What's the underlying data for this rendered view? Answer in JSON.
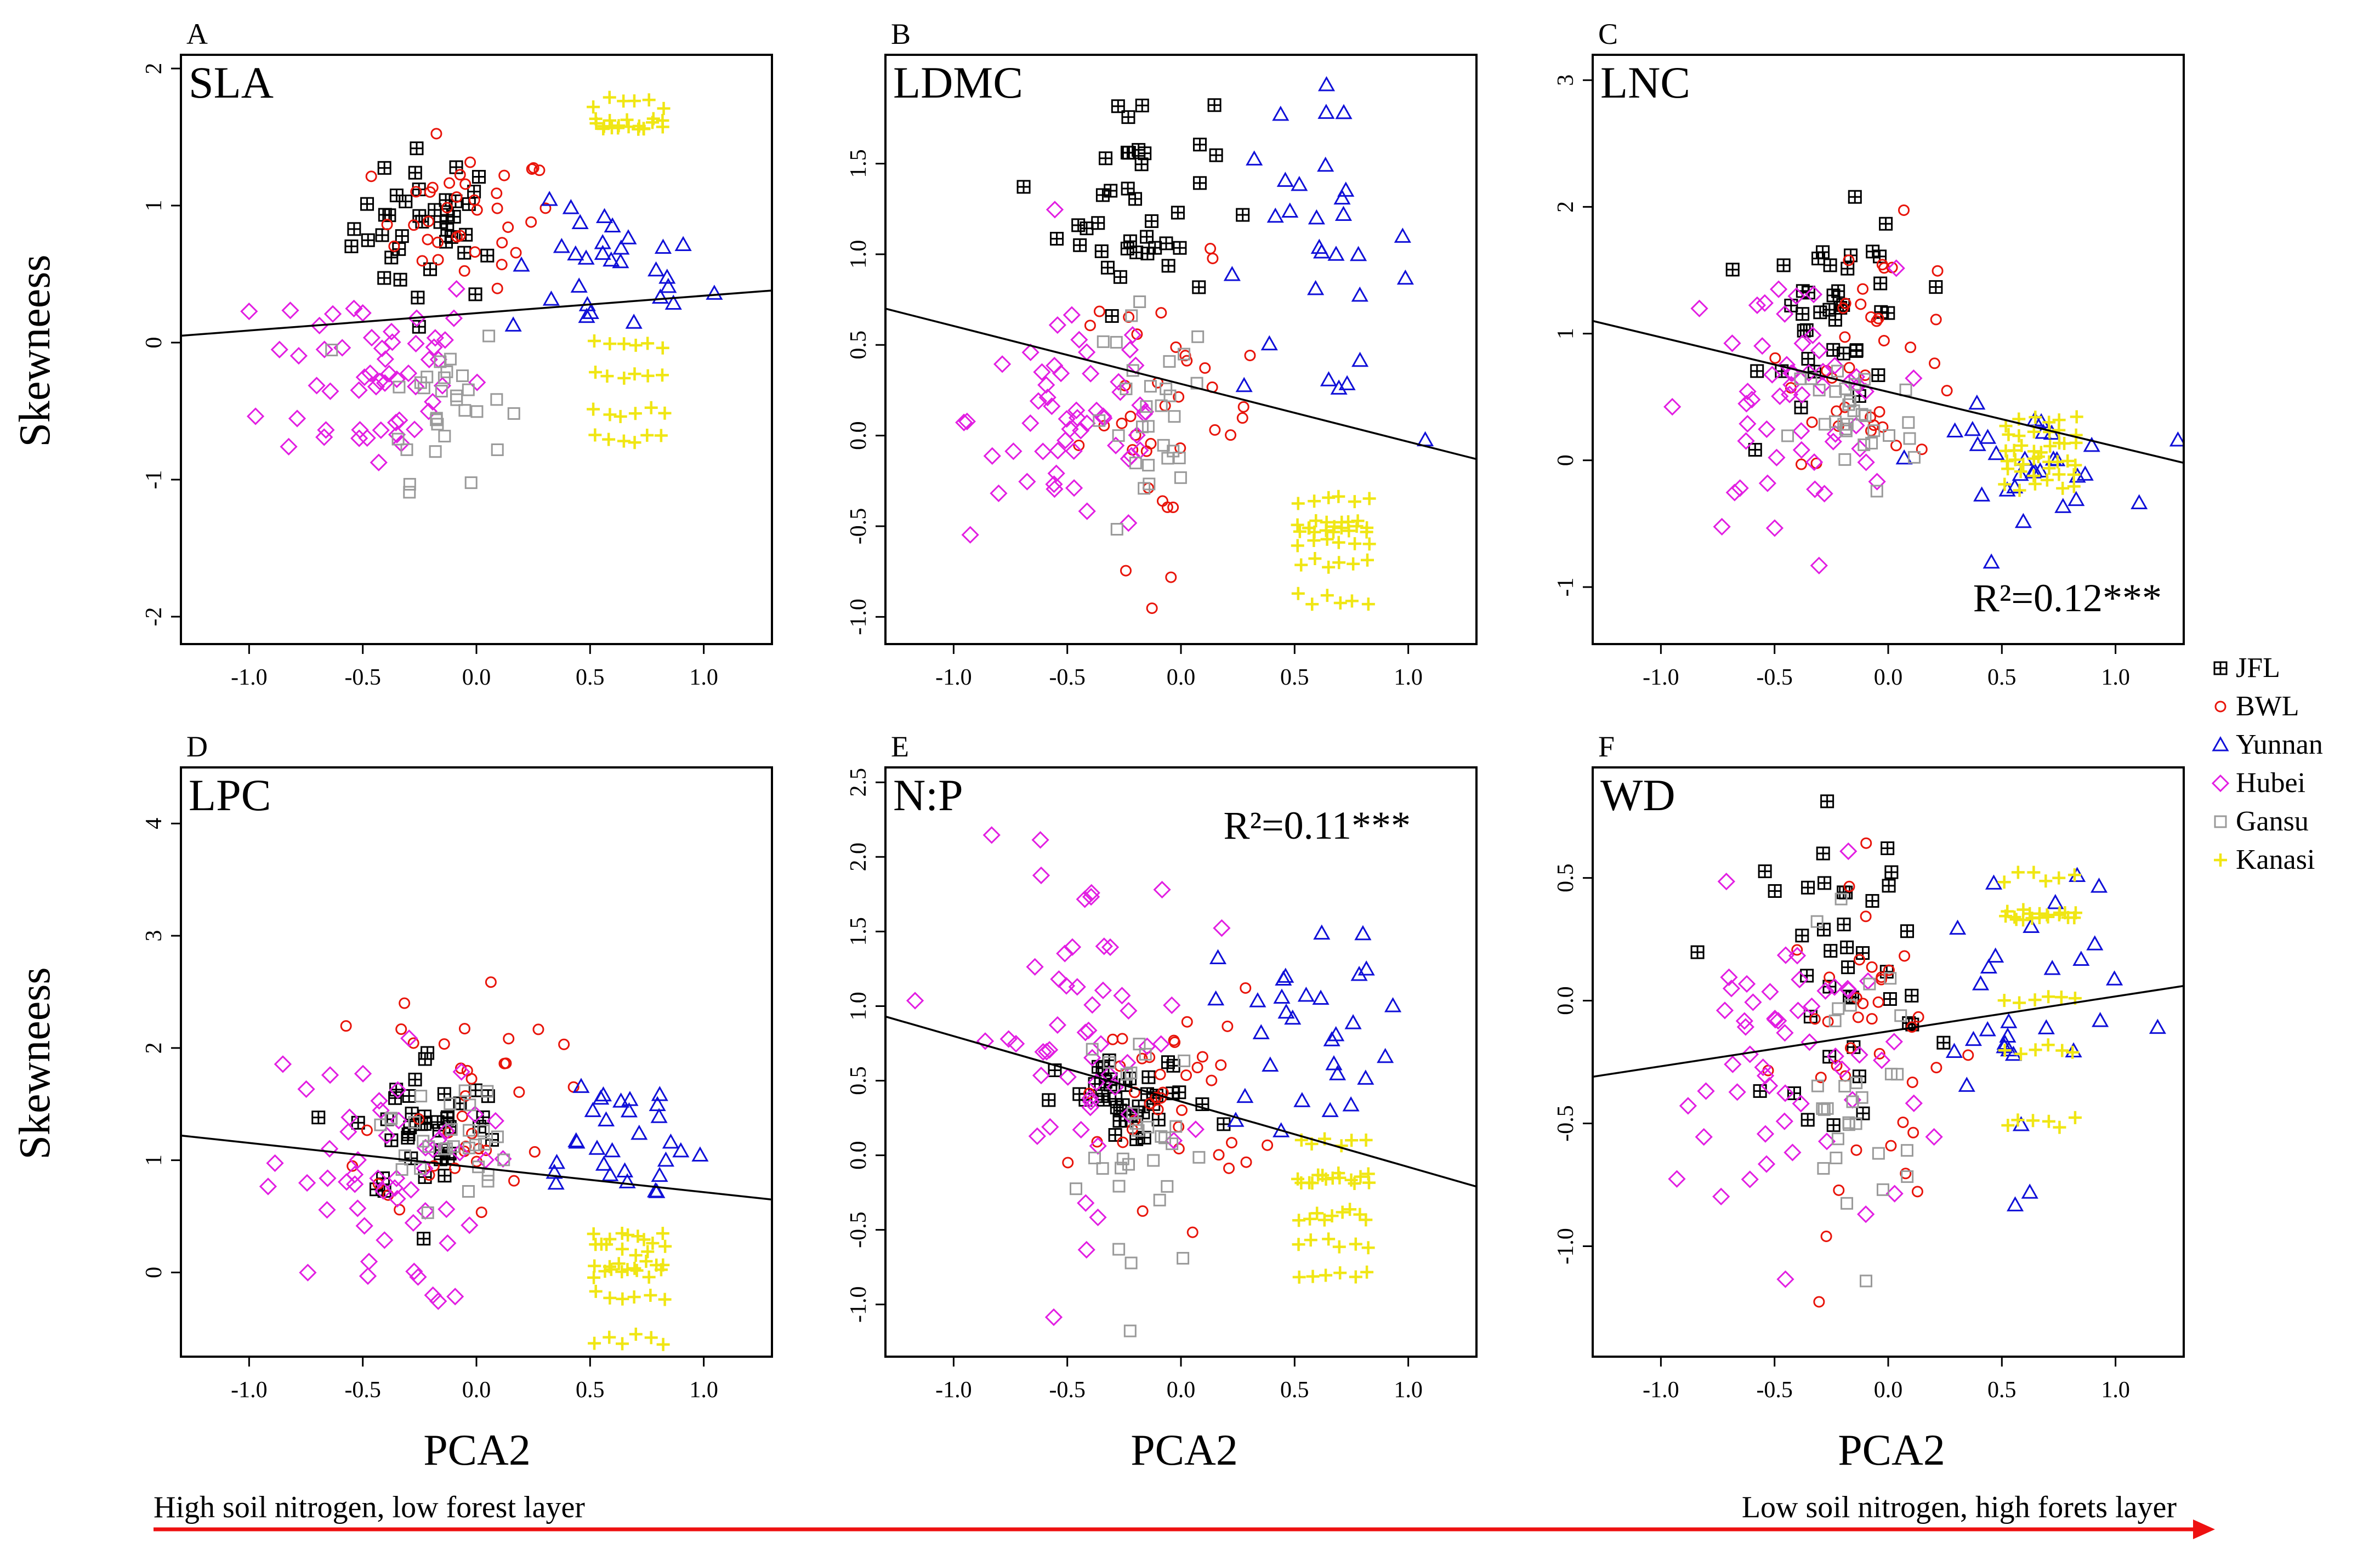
{
  "chart_data": {
    "type": "scatter",
    "figure_ylabel": "Skewneess",
    "figure_xlabel": "PCA2",
    "xlim": [
      -1.3,
      1.3
    ],
    "xticks": [
      -1.0,
      -0.5,
      0.0,
      0.5,
      1.0
    ],
    "xtick_labels": [
      "-1.0",
      "-0.5",
      "0.0",
      "0.5",
      "1.0"
    ],
    "gradient_arrow": {
      "left_label": "High soil nitrogen, low forest layer",
      "right_label": "Low soil nitrogen, high forets layer",
      "color": "#ee1111"
    },
    "legend": [
      {
        "name": "JFL",
        "marker": "boxed-plus",
        "color": "#000000"
      },
      {
        "name": "BWL",
        "marker": "circle",
        "color": "#e8140a"
      },
      {
        "name": "Yunnan",
        "marker": "triangle",
        "color": "#1010d8"
      },
      {
        "name": "Hubei",
        "marker": "diamond",
        "color": "#e21ee2"
      },
      {
        "name": "Gansu",
        "marker": "square",
        "color": "#9a9a9a"
      },
      {
        "name": "Kanasi",
        "marker": "plus",
        "color": "#f0e614"
      }
    ],
    "groups": [
      {
        "name": "JFL",
        "x_center": -0.2,
        "x_sd": 0.17
      },
      {
        "name": "BWL",
        "x_center": -0.05,
        "x_sd": 0.2
      },
      {
        "name": "Yunnan",
        "x_center": 0.58,
        "x_sd": 0.22
      },
      {
        "name": "Hubei",
        "x_center": -0.45,
        "x_sd": 0.24
      },
      {
        "name": "Gansu",
        "x_center": -0.15,
        "x_sd": 0.14
      },
      {
        "name": "Kanasi",
        "x_center": 0.67,
        "x_sd": 0.09
      }
    ],
    "panels": [
      {
        "letter": "A",
        "title": "SLA",
        "r2_label": "",
        "ylim": [
          -2.2,
          2.1
        ],
        "yticks": [
          -2,
          -1,
          0,
          1,
          2
        ],
        "ytick_labels": [
          "-2",
          "-1",
          "0",
          "1",
          "2"
        ],
        "regression": {
          "x1": -1.3,
          "y1": 0.05,
          "x2": 1.3,
          "y2": 0.38
        },
        "group_y": [
          {
            "name": "JFL",
            "mean": 0.85,
            "sd": 0.28
          },
          {
            "name": "BWL",
            "mean": 0.9,
            "sd": 0.25
          },
          {
            "name": "Yunnan",
            "mean": 0.5,
            "sd": 0.25
          },
          {
            "name": "Hubei",
            "mean": -0.2,
            "sd": 0.4
          },
          {
            "name": "Gansu",
            "mean": -0.4,
            "sd": 0.3
          },
          {
            "name": "Kanasi",
            "levels": [
              1.6,
              1.6,
              0.0,
              -0.25,
              -0.5,
              1.75,
              -0.7
            ]
          }
        ]
      },
      {
        "letter": "B",
        "title": "LDMC",
        "r2_label": "",
        "ylim": [
          -1.15,
          2.1
        ],
        "yticks": [
          -1.0,
          -0.5,
          0.0,
          0.5,
          1.0,
          1.5
        ],
        "ytick_labels": [
          "-1.0",
          "-0.5",
          "0.0",
          "0.5",
          "1.0",
          "1.5"
        ],
        "regression": {
          "x1": -1.3,
          "y1": 0.7,
          "x2": 1.3,
          "y2": -0.13
        },
        "group_y": [
          {
            "name": "JFL",
            "mean": 1.3,
            "sd": 0.3
          },
          {
            "name": "BWL",
            "mean": 0.1,
            "sd": 0.4
          },
          {
            "name": "Yunnan",
            "mean": 1.0,
            "sd": 0.4
          },
          {
            "name": "Hubei",
            "mean": 0.1,
            "sd": 0.35
          },
          {
            "name": "Gansu",
            "mean": 0.0,
            "sd": 0.35
          },
          {
            "name": "Kanasi",
            "levels": [
              -0.5,
              -0.5,
              -0.6,
              -0.7,
              -0.35,
              -0.9
            ]
          }
        ]
      },
      {
        "letter": "C",
        "title": "LNC",
        "r2_label": "R²=0.12***",
        "ylim": [
          -1.45,
          3.2
        ],
        "yticks": [
          -1,
          0,
          1,
          2,
          3
        ],
        "ytick_labels": [
          "-1",
          "0",
          "1",
          "2",
          "3"
        ],
        "regression": {
          "x1": -1.3,
          "y1": 1.1,
          "x2": 1.3,
          "y2": -0.02
        },
        "group_y": [
          {
            "name": "JFL",
            "mean": 1.1,
            "sd": 0.4
          },
          {
            "name": "BWL",
            "mean": 0.9,
            "sd": 0.45
          },
          {
            "name": "Yunnan",
            "mean": 0.0,
            "sd": 0.2
          },
          {
            "name": "Hubei",
            "mean": 0.4,
            "sd": 0.55
          },
          {
            "name": "Gansu",
            "mean": 0.3,
            "sd": 0.3
          },
          {
            "name": "Kanasi",
            "levels": [
              0.1,
              0.0,
              -0.1,
              -0.2,
              0.2,
              0.3
            ]
          }
        ]
      },
      {
        "letter": "D",
        "title": "LPC",
        "r2_label": "",
        "ylim": [
          -0.75,
          4.5
        ],
        "yticks": [
          0,
          1,
          2,
          3,
          4
        ],
        "ytick_labels": [
          "0",
          "1",
          "2",
          "3",
          "4"
        ],
        "regression": {
          "x1": -1.3,
          "y1": 1.22,
          "x2": 1.3,
          "y2": 0.65
        },
        "group_y": [
          {
            "name": "JFL",
            "mean": 1.3,
            "sd": 0.35
          },
          {
            "name": "BWL",
            "mean": 1.6,
            "sd": 0.55
          },
          {
            "name": "Yunnan",
            "mean": 1.2,
            "sd": 0.35
          },
          {
            "name": "Hubei",
            "mean": 0.8,
            "sd": 0.55
          },
          {
            "name": "Gansu",
            "mean": 1.2,
            "sd": 0.3
          },
          {
            "name": "Kanasi",
            "levels": [
              0.3,
              0.05,
              -0.2,
              -0.6,
              0.2,
              0.0
            ]
          }
        ]
      },
      {
        "letter": "E",
        "title": "N:P",
        "r2_label": "R²=0.11***",
        "ylim": [
          -1.35,
          2.6
        ],
        "yticks": [
          -1.0,
          -0.5,
          0.0,
          0.5,
          1.0,
          1.5,
          2.0,
          2.5
        ],
        "ytick_labels": [
          "-1.0",
          "-0.5",
          "0.0",
          "0.5",
          "1.0",
          "1.5",
          "2.0",
          "2.5"
        ],
        "regression": {
          "x1": -1.3,
          "y1": 0.93,
          "x2": 1.3,
          "y2": -0.21
        },
        "group_y": [
          {
            "name": "JFL",
            "mean": 0.35,
            "sd": 0.15
          },
          {
            "name": "BWL",
            "mean": 0.4,
            "sd": 0.35
          },
          {
            "name": "Yunnan",
            "mean": 0.9,
            "sd": 0.35
          },
          {
            "name": "Hubei",
            "mean": 0.8,
            "sd": 0.6
          },
          {
            "name": "Gansu",
            "mean": 0.0,
            "sd": 0.45
          },
          {
            "name": "Kanasi",
            "levels": [
              -0.15,
              -0.4,
              -0.6,
              -0.15,
              0.1,
              -0.8
            ]
          }
        ]
      },
      {
        "letter": "F",
        "title": "WD",
        "r2_label": "",
        "ylim": [
          -1.45,
          0.95
        ],
        "yticks": [
          -1.0,
          -0.5,
          0.0,
          0.5
        ],
        "ytick_labels": [
          "-1.0",
          "-0.5",
          "0.0",
          "0.5"
        ],
        "regression": {
          "x1": -1.3,
          "y1": -0.31,
          "x2": 1.3,
          "y2": 0.06
        },
        "group_y": [
          {
            "name": "JFL",
            "mean": 0.15,
            "sd": 0.3
          },
          {
            "name": "BWL",
            "mean": -0.2,
            "sd": 0.35
          },
          {
            "name": "Yunnan",
            "mean": 0.0,
            "sd": 0.35
          },
          {
            "name": "Hubei",
            "mean": -0.3,
            "sd": 0.35
          },
          {
            "name": "Gansu",
            "mean": -0.4,
            "sd": 0.3
          },
          {
            "name": "Kanasi",
            "levels": [
              0.35,
              0.35,
              0.0,
              -0.2,
              0.5,
              -0.5
            ]
          }
        ]
      }
    ]
  }
}
